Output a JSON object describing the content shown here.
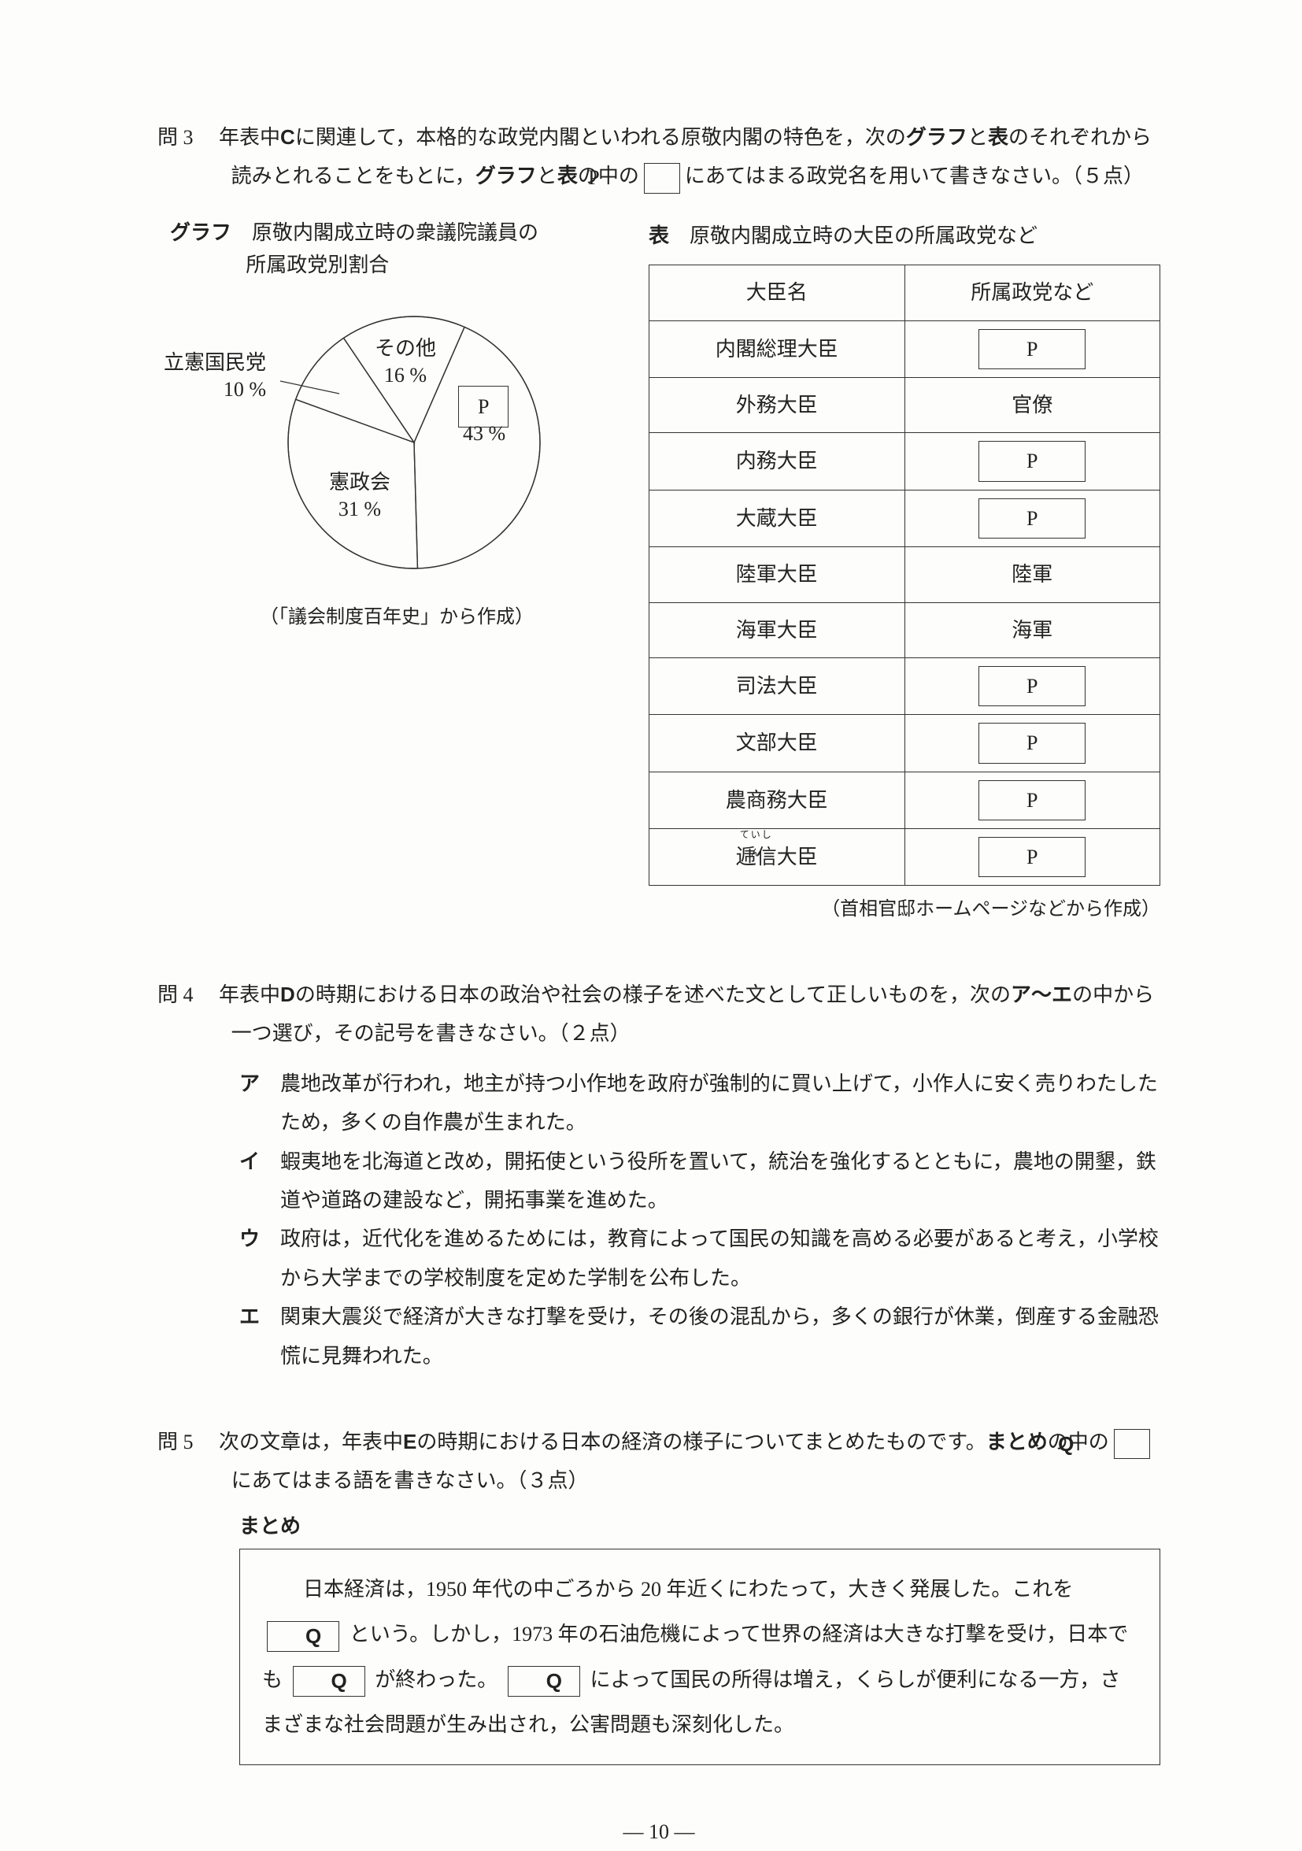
{
  "q3": {
    "label": "問 3",
    "text1": "　年表中",
    "textC": "C",
    "text2": "に関連して，本格的な政党内閣といわれる原敬内閣の特色を，次の",
    "graphword": "グラフ",
    "text3": "と",
    "tableword1": "表",
    "text4": "のそれぞれから読みとれることをもとに，",
    "graphword2": "グラフ",
    "text5": "と",
    "tableword2": "表",
    "text6": "の中の",
    "p_inset": "P",
    "text7": "にあてはまる政党名を用いて書きなさい。（５点）",
    "chart": {
      "title_prefix": "グラフ",
      "title1": "原敬内閣成立時の衆議院議員の",
      "title2": "所属政党別割合",
      "slices": [
        {
          "name": "P",
          "pct": 43,
          "label_p": "P",
          "label_pct": "43 %"
        },
        {
          "name": "憲政会",
          "pct": 31,
          "label_pct": "31 %"
        },
        {
          "name": "立憲国民党",
          "pct": 10,
          "label_pct": "10 %"
        },
        {
          "name": "その他",
          "pct": 16,
          "label_pct": "16 %"
        }
      ],
      "colors": {
        "stroke": "#333333",
        "fill": "#ffffff"
      },
      "source": "（「議会制度百年史」から作成）"
    },
    "table": {
      "title_prefix": "表",
      "title": "原敬内閣成立時の大臣の所属政党など",
      "headers": [
        "大臣名",
        "所属政党など"
      ],
      "rows": [
        {
          "name": "内閣総理大臣",
          "party": "P",
          "boxed": true
        },
        {
          "name": "外務大臣",
          "party": "官僚",
          "boxed": false
        },
        {
          "name": "内務大臣",
          "party": "P",
          "boxed": true
        },
        {
          "name": "大蔵大臣",
          "party": "P",
          "boxed": true
        },
        {
          "name": "陸軍大臣",
          "party": "陸軍",
          "boxed": false
        },
        {
          "name": "海軍大臣",
          "party": "海軍",
          "boxed": false
        },
        {
          "name": "司法大臣",
          "party": "P",
          "boxed": true
        },
        {
          "name": "文部大臣",
          "party": "P",
          "boxed": true
        },
        {
          "name": "農商務大臣",
          "party": "P",
          "boxed": true
        },
        {
          "name": "逓信大臣",
          "party": "P",
          "boxed": true,
          "ruby": "ていしん"
        }
      ],
      "source": "（首相官邸ホームページなどから作成）"
    }
  },
  "q4": {
    "label": "問 4",
    "text1": "　年表中",
    "textD": "D",
    "text2": "の時期における日本の政治や社会の様子を述べた文として正しいものを，次の",
    "range": "ア〜エ",
    "text3": "の中から一つ選び，その記号を書きなさい。（２点）",
    "choices": [
      {
        "mark": "ア",
        "text": "農地改革が行われ，地主が持つ小作地を政府が強制的に買い上げて，小作人に安く売りわたしたため，多くの自作農が生まれた。"
      },
      {
        "mark": "イ",
        "text": "蝦夷地を北海道と改め，開拓使という役所を置いて，統治を強化するとともに，農地の開墾，鉄道や道路の建設など，開拓事業を進めた。"
      },
      {
        "mark": "ウ",
        "text": "政府は，近代化を進めるためには，教育によって国民の知識を高める必要があると考え，小学校から大学までの学校制度を定めた学制を公布した。"
      },
      {
        "mark": "エ",
        "text": "関東大震災で経済が大きな打撃を受け，その後の混乱から，多くの銀行が休業，倒産する金融恐慌に見舞われた。"
      }
    ]
  },
  "q5": {
    "label": "問 5",
    "text1": "　次の文章は，年表中",
    "textE": "E",
    "text2": "の時期における日本の経済の様子についてまとめたものです。",
    "matome_word": "まとめ",
    "text3": "の中の",
    "q_inset": "Q",
    "text4": "にあてはまる語を書きなさい。（３点）",
    "matome_label": "まとめ",
    "matome": {
      "s1": "日本経済は，1950 年代の中ごろから 20 年近くにわたって，大きく発展した。これを",
      "q1": "Q",
      "s2": "という。しかし，1973 年の石油危機によって世界の経済は大きな打撃を受け，日本でも",
      "q2": "Q",
      "s3": "が終わった。",
      "q3": "Q",
      "s4": "によって国民の所得は増え，くらしが便利になる一方，さまざまな社会問題が生み出され，公害問題も深刻化した。"
    }
  },
  "page": "— 10 —"
}
